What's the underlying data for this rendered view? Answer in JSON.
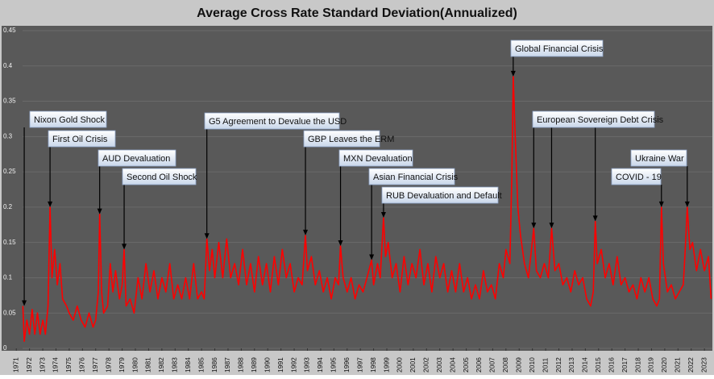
{
  "chart_data": {
    "type": "line",
    "title": "Average Cross Rate Standard Deviation(Annualized)",
    "xlim": [
      1970.5,
      2023.6
    ],
    "ylim": [
      0,
      0.45
    ],
    "yticks": [
      0,
      0.05,
      0.1,
      0.15,
      0.2,
      0.25,
      0.3,
      0.35,
      0.4,
      0.45
    ],
    "xticks": [
      1971,
      1972,
      1973,
      1974,
      1975,
      1976,
      1977,
      1978,
      1979,
      1980,
      1981,
      1982,
      1983,
      1984,
      1985,
      1986,
      1987,
      1988,
      1989,
      1990,
      1991,
      1992,
      1993,
      1994,
      1995,
      1996,
      1997,
      1998,
      1999,
      2000,
      2001,
      2002,
      2003,
      2004,
      2005,
      2006,
      2007,
      2008,
      2009,
      2010,
      2011,
      2012,
      2013,
      2014,
      2015,
      2016,
      2017,
      2018,
      2019,
      2020,
      2021,
      2022,
      2023
    ],
    "grid": true,
    "series": [
      {
        "color": "#ff0000",
        "x": [
          1971.5,
          1971.6,
          1971.8,
          1972.0,
          1972.2,
          1972.4,
          1972.6,
          1972.8,
          1973.0,
          1973.2,
          1973.4,
          1973.55,
          1973.7,
          1973.9,
          1974.1,
          1974.3,
          1974.5,
          1974.8,
          1975.0,
          1975.3,
          1975.6,
          1975.9,
          1976.2,
          1976.5,
          1976.8,
          1977.0,
          1977.2,
          1977.3,
          1977.45,
          1977.6,
          1977.9,
          1978.1,
          1978.3,
          1978.5,
          1978.8,
          1979.0,
          1979.15,
          1979.3,
          1979.6,
          1979.9,
          1980.2,
          1980.5,
          1980.8,
          1981.1,
          1981.4,
          1981.7,
          1982.0,
          1982.3,
          1982.6,
          1982.9,
          1983.2,
          1983.5,
          1983.8,
          1984.1,
          1984.4,
          1984.7,
          1985.0,
          1985.2,
          1985.4,
          1985.6,
          1985.8,
          1986.0,
          1986.3,
          1986.6,
          1986.9,
          1987.2,
          1987.5,
          1987.8,
          1988.1,
          1988.4,
          1988.7,
          1989.0,
          1989.3,
          1989.6,
          1989.9,
          1990.2,
          1990.5,
          1990.8,
          1991.1,
          1991.4,
          1991.7,
          1992.0,
          1992.3,
          1992.6,
          1992.85,
          1993.0,
          1993.3,
          1993.6,
          1993.9,
          1994.2,
          1994.5,
          1994.8,
          1995.1,
          1995.35,
          1995.5,
          1995.7,
          1996.0,
          1996.3,
          1996.6,
          1996.9,
          1997.2,
          1997.5,
          1997.85,
          1998.0,
          1998.3,
          1998.5,
          1998.75,
          1998.9,
          1999.1,
          1999.4,
          1999.7,
          2000.0,
          2000.3,
          2000.6,
          2000.9,
          2001.2,
          2001.5,
          2001.8,
          2002.1,
          2002.4,
          2002.7,
          2003.0,
          2003.3,
          2003.6,
          2003.9,
          2004.2,
          2004.5,
          2004.8,
          2005.1,
          2005.4,
          2005.7,
          2006.0,
          2006.3,
          2006.6,
          2006.9,
          2007.2,
          2007.5,
          2007.8,
          2008.0,
          2008.3,
          2008.45,
          2008.55,
          2008.7,
          2008.9,
          2009.1,
          2009.4,
          2009.7,
          2010.1,
          2010.3,
          2010.6,
          2010.9,
          2011.2,
          2011.45,
          2011.7,
          2012.0,
          2012.3,
          2012.6,
          2012.9,
          2013.2,
          2013.5,
          2013.8,
          2014.1,
          2014.4,
          2014.6,
          2014.75,
          2014.9,
          2015.2,
          2015.5,
          2015.8,
          2016.1,
          2016.4,
          2016.7,
          2017.0,
          2017.3,
          2017.6,
          2017.9,
          2018.2,
          2018.5,
          2018.8,
          2019.1,
          2019.4,
          2019.6,
          2019.75,
          2019.9,
          2020.2,
          2020.5,
          2020.8,
          2021.1,
          2021.4,
          2021.55,
          2021.7,
          2021.9,
          2022.1,
          2022.4,
          2022.7,
          2023.0,
          2023.3,
          2023.5
        ],
        "values": [
          0.06,
          0.01,
          0.04,
          0.02,
          0.055,
          0.02,
          0.05,
          0.02,
          0.04,
          0.02,
          0.06,
          0.2,
          0.1,
          0.14,
          0.09,
          0.12,
          0.07,
          0.06,
          0.05,
          0.04,
          0.06,
          0.04,
          0.03,
          0.05,
          0.03,
          0.04,
          0.08,
          0.19,
          0.08,
          0.05,
          0.06,
          0.12,
          0.08,
          0.11,
          0.07,
          0.09,
          0.14,
          0.06,
          0.07,
          0.05,
          0.1,
          0.07,
          0.12,
          0.08,
          0.11,
          0.07,
          0.1,
          0.08,
          0.12,
          0.07,
          0.09,
          0.07,
          0.1,
          0.07,
          0.12,
          0.07,
          0.08,
          0.07,
          0.155,
          0.11,
          0.14,
          0.1,
          0.15,
          0.1,
          0.155,
          0.1,
          0.12,
          0.09,
          0.14,
          0.09,
          0.12,
          0.08,
          0.13,
          0.09,
          0.12,
          0.08,
          0.13,
          0.09,
          0.14,
          0.1,
          0.12,
          0.08,
          0.1,
          0.09,
          0.16,
          0.11,
          0.13,
          0.09,
          0.11,
          0.08,
          0.1,
          0.07,
          0.1,
          0.09,
          0.145,
          0.1,
          0.08,
          0.1,
          0.07,
          0.09,
          0.08,
          0.1,
          0.125,
          0.09,
          0.12,
          0.1,
          0.185,
          0.13,
          0.15,
          0.1,
          0.12,
          0.08,
          0.13,
          0.09,
          0.12,
          0.1,
          0.14,
          0.09,
          0.12,
          0.08,
          0.13,
          0.1,
          0.12,
          0.08,
          0.11,
          0.08,
          0.12,
          0.08,
          0.1,
          0.07,
          0.09,
          0.07,
          0.11,
          0.08,
          0.09,
          0.07,
          0.12,
          0.1,
          0.14,
          0.12,
          0.25,
          0.385,
          0.3,
          0.2,
          0.16,
          0.12,
          0.1,
          0.17,
          0.11,
          0.1,
          0.12,
          0.1,
          0.17,
          0.11,
          0.12,
          0.09,
          0.1,
          0.08,
          0.11,
          0.09,
          0.1,
          0.07,
          0.06,
          0.08,
          0.18,
          0.12,
          0.14,
          0.1,
          0.12,
          0.09,
          0.13,
          0.09,
          0.1,
          0.08,
          0.09,
          0.07,
          0.1,
          0.08,
          0.1,
          0.07,
          0.06,
          0.07,
          0.2,
          0.12,
          0.08,
          0.09,
          0.07,
          0.08,
          0.09,
          0.14,
          0.2,
          0.14,
          0.15,
          0.11,
          0.14,
          0.11,
          0.13,
          0.07
        ]
      }
    ],
    "annotations": [
      {
        "text": "Nixon Gold Shock",
        "x": [
          1971.6
        ],
        "y": [
          0.06
        ]
      },
      {
        "text": "First Oil Crisis",
        "x": [
          1973.55
        ],
        "y": [
          0.2
        ]
      },
      {
        "text": "AUD Devaluation",
        "x": [
          1977.3
        ],
        "y": [
          0.19
        ]
      },
      {
        "text": "Second Oil Shock",
        "x": [
          1979.15
        ],
        "y": [
          0.14
        ]
      },
      {
        "text": "G5 Agreement to Devalue the USD",
        "x": [
          1985.4
        ],
        "y": [
          0.155
        ]
      },
      {
        "text": "GBP Leaves the ERM",
        "x": [
          1992.85
        ],
        "y": [
          0.16
        ]
      },
      {
        "text": "MXN Devaluation",
        "x": [
          1995.5
        ],
        "y": [
          0.145
        ]
      },
      {
        "text": "Asian Financial Crisis",
        "x": [
          1997.85
        ],
        "y": [
          0.125
        ]
      },
      {
        "text": "RUB Devaluation and Default",
        "x": [
          1998.75
        ],
        "y": [
          0.185
        ]
      },
      {
        "text": "Global Financial Crisis",
        "x": [
          2008.55
        ],
        "y": [
          0.385
        ]
      },
      {
        "text": "European Sovereign Debt Crisis",
        "x": [
          2010.1,
          2011.45,
          2014.75
        ],
        "y": [
          0.17,
          0.17,
          0.18
        ]
      },
      {
        "text": "COVID - 19",
        "x": [
          2019.75
        ],
        "y": [
          0.2
        ]
      },
      {
        "text": "Ukraine War",
        "x": [
          2021.7
        ],
        "y": [
          0.2
        ]
      }
    ]
  }
}
